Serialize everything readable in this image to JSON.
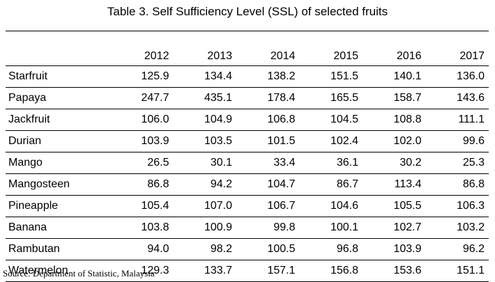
{
  "title": "Table 3. Self Sufficiency Level (SSL) of selected fruits",
  "table": {
    "years": [
      "2012",
      "2013",
      "2014",
      "2015",
      "2016",
      "2017"
    ],
    "rows": [
      {
        "fruit": "Starfruit",
        "values": [
          "125.9",
          "134.4",
          "138.2",
          "151.5",
          "140.1",
          "136.0"
        ]
      },
      {
        "fruit": "Papaya",
        "values": [
          "247.7",
          "435.1",
          "178.4",
          "165.5",
          "158.7",
          "143.6"
        ]
      },
      {
        "fruit": "Jackfruit",
        "values": [
          "106.0",
          "104.9",
          "106.8",
          "104.5",
          "108.8",
          "111.1"
        ]
      },
      {
        "fruit": "Durian",
        "values": [
          "103.9",
          "103.5",
          "101.5",
          "102.4",
          "102.0",
          "99.6"
        ]
      },
      {
        "fruit": "Mango",
        "values": [
          "26.5",
          "30.1",
          "33.4",
          "36.1",
          "30.2",
          "25.3"
        ]
      },
      {
        "fruit": "Mangosteen",
        "values": [
          "86.8",
          "94.2",
          "104.7",
          "86.7",
          "113.4",
          "86.8"
        ]
      },
      {
        "fruit": "Pineapple",
        "values": [
          "105.4",
          "107.0",
          "106.7",
          "104.6",
          "105.5",
          "106.3"
        ]
      },
      {
        "fruit": "Banana",
        "values": [
          "103.8",
          "100.9",
          "99.8",
          "100.1",
          "102.7",
          "103.2"
        ]
      },
      {
        "fruit": "Rambutan",
        "values": [
          "94.0",
          "98.2",
          "100.5",
          "96.8",
          "103.9",
          "96.2"
        ]
      },
      {
        "fruit": "Watermelon",
        "values": [
          "129.3",
          "133.7",
          "157.1",
          "156.8",
          "153.6",
          "151.1"
        ]
      }
    ]
  },
  "source": "Source: Department of Statistic, Malaysia"
}
